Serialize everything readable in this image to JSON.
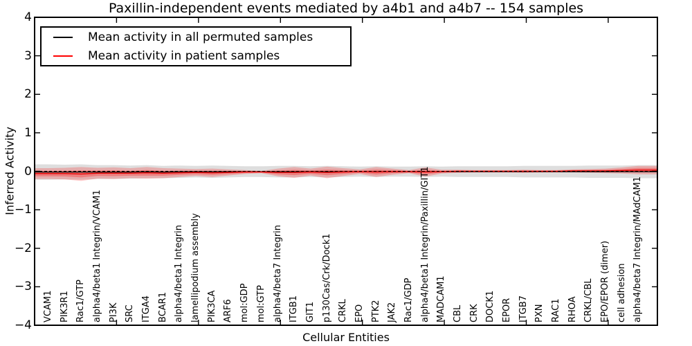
{
  "figure": {
    "background": "#ffffff",
    "frame_color": "#000000"
  },
  "chart_data": {
    "type": "line",
    "title": "Paxillin-independent events mediated by a4b1 and a4b7 -- 154 samples",
    "xlabel": "Cellular Entities",
    "ylabel": "Inferred Activity",
    "ylim": [
      -4,
      4
    ],
    "y_ticks": [
      "4",
      "3",
      "2",
      "1",
      "0",
      "−1",
      "−2",
      "−3",
      "−4"
    ],
    "grid": false,
    "legend_position": "upper left",
    "zero_line_style": "dashed-black",
    "categories": [
      "VCAM1",
      "PIK3R1",
      "Rac1/GTP",
      "alpha4/beta1 Integrin/VCAM1",
      "PI3K",
      "SRC",
      "ITGA4",
      "BCAR1",
      "alpha4/beta1 Integrin",
      "lamellipodium assembly",
      "PIK3CA",
      "ARF6",
      "mol:GDP",
      "mol:GTP",
      "alpha4/beta7 Integrin",
      "ITGB1",
      "GIT1",
      "p130Cas/Crk/Dock1",
      "CRKL",
      "EPO",
      "PTK2",
      "JAK2",
      "Rac1/GDP",
      "alpha4/beta1 Integrin/Paxillin/GIT1",
      "MADCAM1",
      "CBL",
      "CRK",
      "DOCK1",
      "EPOR",
      "ITGB7",
      "PXN",
      "RAC1",
      "RHOA",
      "CRKL/CBL",
      "EPO/EPOR (dimer)",
      "cell adhesion",
      "alpha4/beta7 Integrin/MAdCAM1"
    ],
    "series": [
      {
        "name": "Mean activity in all permuted samples",
        "color": "#000000",
        "band_color": "#999999",
        "band_opacity": 0.32,
        "values": [
          -0.02,
          -0.02,
          -0.02,
          -0.02,
          -0.02,
          -0.02,
          -0.01,
          -0.02,
          -0.01,
          -0.01,
          -0.01,
          -0.01,
          -0.01,
          -0.01,
          -0.01,
          -0.01,
          -0.01,
          -0.01,
          -0.01,
          -0.01,
          -0.01,
          -0.01,
          -0.01,
          -0.01,
          -0.01,
          -0.01,
          -0.01,
          -0.01,
          -0.01,
          -0.01,
          -0.01,
          -0.01,
          -0.01,
          -0.01,
          -0.01,
          -0.01,
          -0.01
        ],
        "std": [
          0.2,
          0.19,
          0.2,
          0.18,
          0.18,
          0.17,
          0.17,
          0.16,
          0.16,
          0.15,
          0.16,
          0.15,
          0.14,
          0.14,
          0.15,
          0.15,
          0.14,
          0.15,
          0.14,
          0.13,
          0.14,
          0.13,
          0.13,
          0.14,
          0.13,
          0.14,
          0.14,
          0.14,
          0.14,
          0.15,
          0.15,
          0.15,
          0.15,
          0.16,
          0.16,
          0.16,
          0.17
        ]
      },
      {
        "name": "Mean activity in patient samples",
        "color": "#e60000",
        "band_color": "#ff0000",
        "band_opacity": 0.22,
        "values": [
          -0.06,
          -0.06,
          -0.07,
          -0.05,
          -0.05,
          -0.05,
          -0.04,
          -0.05,
          -0.04,
          -0.03,
          -0.04,
          -0.03,
          -0.02,
          -0.02,
          -0.03,
          -0.03,
          -0.02,
          -0.03,
          -0.02,
          -0.01,
          -0.02,
          -0.01,
          -0.01,
          -0.02,
          -0.01,
          0.0,
          0.0,
          0.0,
          0.0,
          0.0,
          0.0,
          0.0,
          0.01,
          0.01,
          0.01,
          0.02,
          0.03
        ],
        "std": [
          0.14,
          0.15,
          0.18,
          0.14,
          0.15,
          0.13,
          0.15,
          0.13,
          0.11,
          0.09,
          0.11,
          0.08,
          0.05,
          0.03,
          0.1,
          0.14,
          0.09,
          0.15,
          0.1,
          0.06,
          0.13,
          0.08,
          0.04,
          0.12,
          0.05,
          0.04,
          0.03,
          0.03,
          0.03,
          0.04,
          0.03,
          0.03,
          0.04,
          0.05,
          0.06,
          0.08,
          0.11
        ]
      }
    ]
  }
}
